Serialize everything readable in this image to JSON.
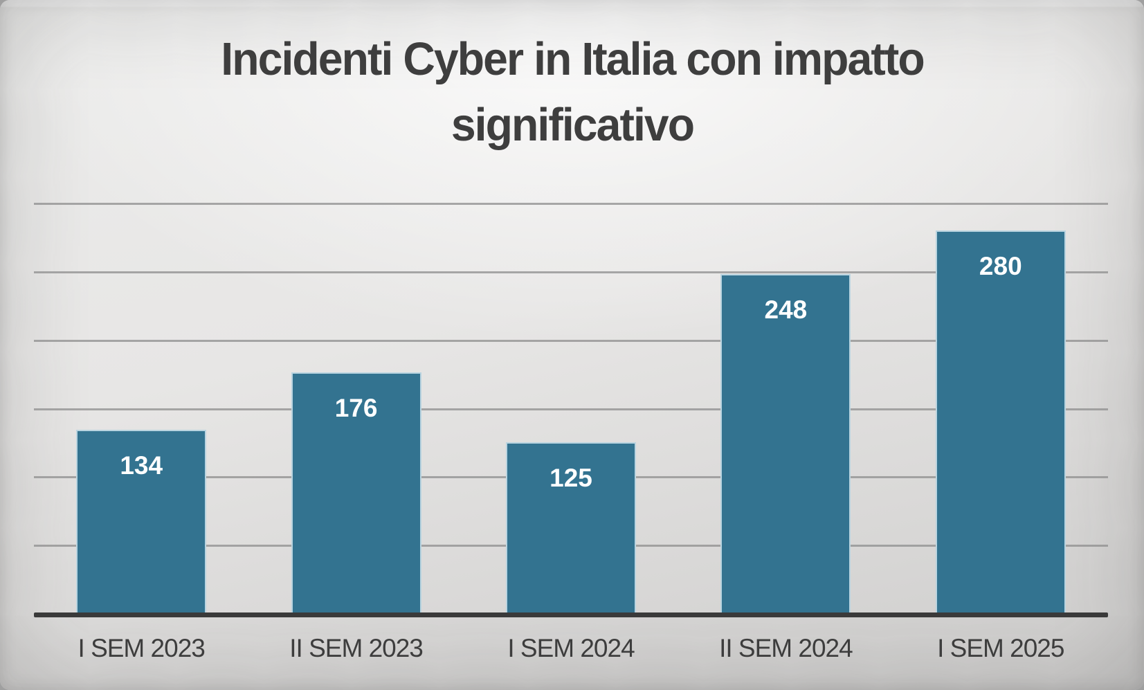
{
  "chart_data": {
    "type": "bar",
    "title": "Incidenti Cyber in Italia con impatto significativo",
    "categories": [
      "I SEM 2023",
      "II SEM 2023",
      "I SEM 2024",
      "II SEM 2024",
      "I SEM 2025"
    ],
    "values": [
      134,
      176,
      125,
      248,
      280
    ],
    "xlabel": "",
    "ylabel": "",
    "ylim": [
      0,
      300
    ],
    "gridline_step": 50,
    "grid": "horizontal-only",
    "y_tick_labels_visible": false,
    "legend_position": "none",
    "value_label_position": "inside-end",
    "colors": {
      "bar_fill": "#337390",
      "bar_border": "#b9d4e0",
      "value_label": "#ffffff",
      "gridline": "#8e8e8e",
      "axis_line": "#3a3a3a",
      "title": "#3e3e3e",
      "category_label": "#3d3d3d",
      "background": "#e7e6e5"
    }
  }
}
